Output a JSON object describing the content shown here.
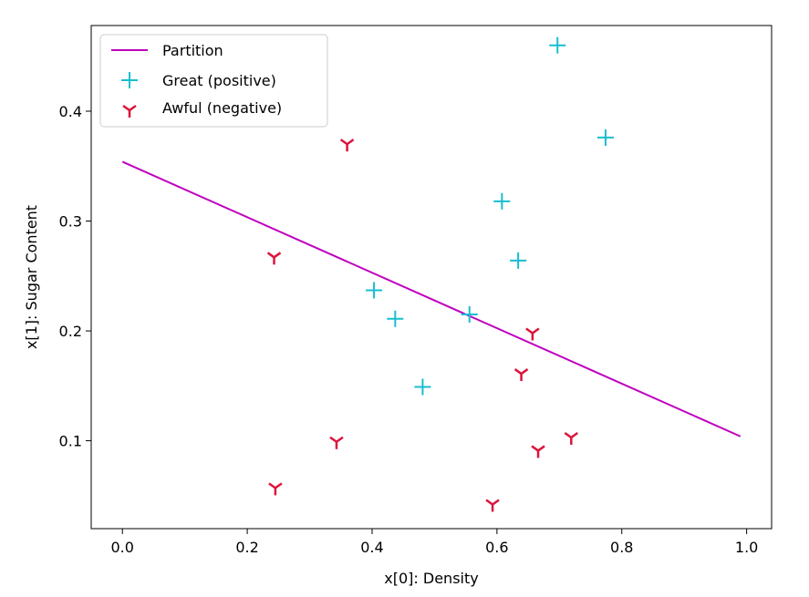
{
  "chart_data": {
    "type": "scatter",
    "title": "",
    "xlabel": "x[0]: Density",
    "ylabel": "x[1]: Sugar Content",
    "xlim": [
      -0.05,
      1.04
    ],
    "ylim": [
      0.02,
      0.478
    ],
    "xticks": [
      0.0,
      0.2,
      0.4,
      0.6,
      0.8,
      1.0
    ],
    "xtick_labels": [
      "0.0",
      "0.2",
      "0.4",
      "0.6",
      "0.8",
      "1.0"
    ],
    "yticks": [
      0.1,
      0.2,
      0.3,
      0.4
    ],
    "ytick_labels": [
      "0.1",
      "0.2",
      "0.3",
      "0.4"
    ],
    "grid": false,
    "legend_position": "top-left",
    "series": [
      {
        "name": "Partition",
        "kind": "line",
        "color": "#bf00bf",
        "x": [
          0.0,
          0.99
        ],
        "y": [
          0.354,
          0.104
        ]
      },
      {
        "name": "Great (positive)",
        "kind": "scatter",
        "marker": "plus",
        "color": "#17becf",
        "x": [
          0.697,
          0.774,
          0.608,
          0.634,
          0.403,
          0.437,
          0.556,
          0.481
        ],
        "y": [
          0.46,
          0.376,
          0.318,
          0.264,
          0.237,
          0.211,
          0.215,
          0.149
        ]
      },
      {
        "name": "Awful (negative)",
        "kind": "scatter",
        "marker": "tri",
        "color": "#dc143c",
        "x": [
          0.36,
          0.243,
          0.657,
          0.639,
          0.343,
          0.719,
          0.666,
          0.245,
          0.593
        ],
        "y": [
          0.37,
          0.267,
          0.198,
          0.161,
          0.099,
          0.103,
          0.091,
          0.057,
          0.042
        ]
      }
    ]
  }
}
